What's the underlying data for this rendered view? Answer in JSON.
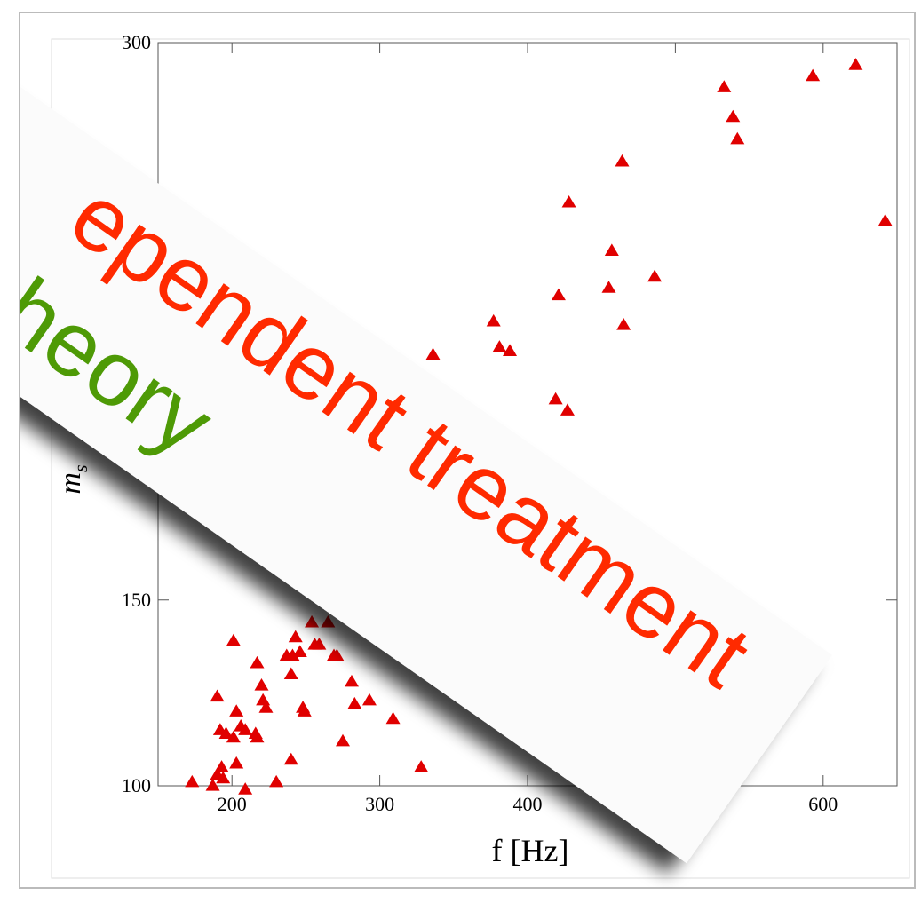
{
  "chart_data": {
    "type": "scatter",
    "xlabel": "f [Hz]",
    "ylabel": "m",
    "ylabel_sub": "s",
    "color": "#e00000",
    "xlim": [
      150,
      650
    ],
    "xticks": [
      200,
      300,
      400,
      500,
      600
    ],
    "ylim": [
      100,
      300
    ],
    "yticks": [
      100,
      150,
      300
    ],
    "x": [
      622,
      593,
      533,
      539,
      542,
      464,
      428,
      642,
      457,
      455,
      486,
      421,
      377,
      465,
      381,
      388,
      336,
      419,
      427,
      201,
      243,
      254,
      265,
      217,
      237,
      241,
      246,
      256,
      259,
      269,
      271,
      240,
      220,
      190,
      221,
      223,
      281,
      283,
      293,
      248,
      249,
      309,
      203,
      192,
      206,
      209,
      196,
      201,
      216,
      217,
      275,
      240,
      203,
      193,
      190,
      194,
      230,
      328,
      173,
      187,
      209
    ],
    "values": [
      294,
      291,
      288,
      280,
      274,
      268,
      257,
      252,
      244,
      234,
      237,
      232,
      225,
      224,
      218,
      217,
      216,
      204,
      201,
      139,
      140,
      144,
      144,
      133,
      135,
      135,
      136,
      138,
      138,
      135,
      135,
      130,
      127,
      124,
      123,
      121,
      128,
      122,
      123,
      121,
      120,
      118,
      120,
      115,
      116,
      115,
      114,
      113,
      114,
      113,
      112,
      107,
      106,
      105,
      103,
      102,
      101,
      105,
      101,
      100,
      99
    ]
  },
  "overlay": {
    "red_text": "ependent treatment",
    "green_text": "heory"
  }
}
